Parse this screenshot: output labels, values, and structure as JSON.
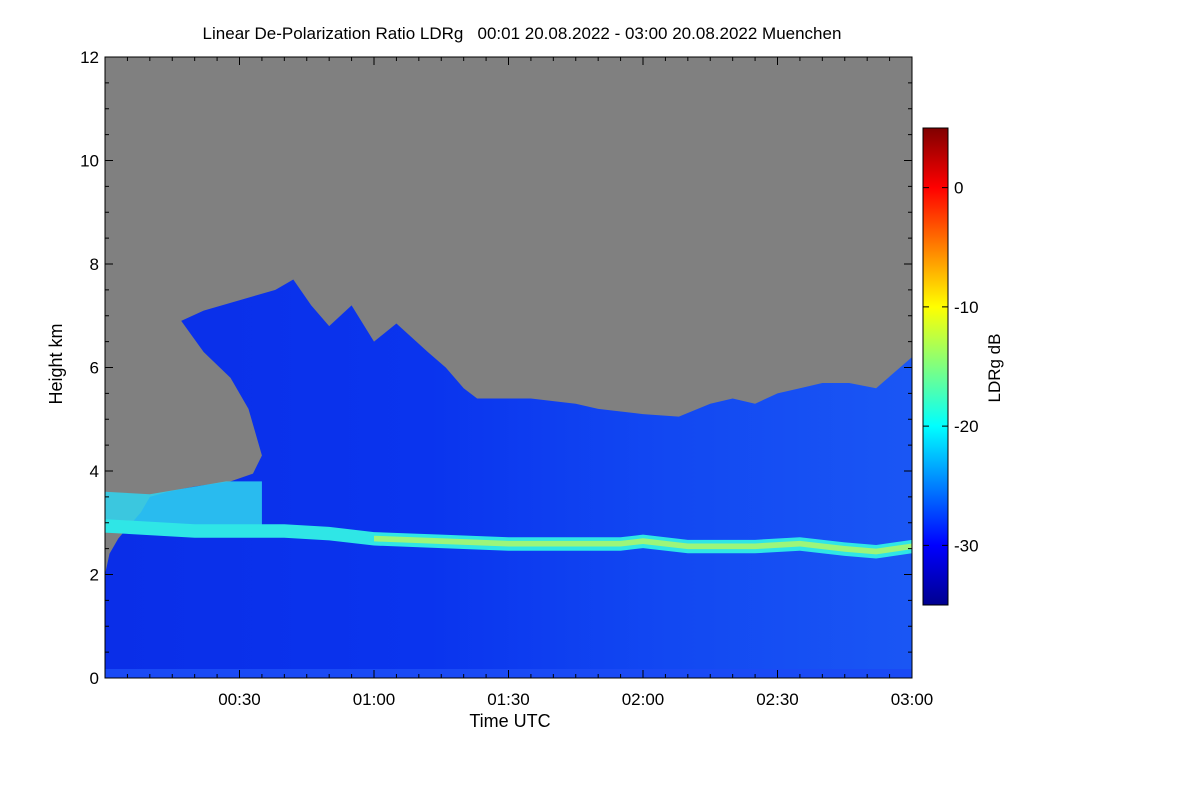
{
  "chart_data": {
    "type": "heatmap",
    "title": "Linear De-Polarization Ratio LDRg   00:01 20.08.2022 - 03:00 20.08.2022 Muenchen",
    "xlabel": "Time UTC",
    "ylabel": "Height km",
    "x_unit": "minutes after 00:00 UTC",
    "xlim": [
      0,
      180
    ],
    "ylim": [
      0,
      12
    ],
    "x_ticks": [
      {
        "value": 30,
        "label": "00:30"
      },
      {
        "value": 60,
        "label": "01:00"
      },
      {
        "value": 90,
        "label": "01:30"
      },
      {
        "value": 120,
        "label": "02:00"
      },
      {
        "value": 150,
        "label": "02:30"
      },
      {
        "value": 180,
        "label": "03:00"
      }
    ],
    "y_ticks": [
      {
        "value": 0,
        "label": "0"
      },
      {
        "value": 2,
        "label": "2"
      },
      {
        "value": 4,
        "label": "4"
      },
      {
        "value": 6,
        "label": "6"
      },
      {
        "value": 8,
        "label": "8"
      },
      {
        "value": 10,
        "label": "10"
      },
      {
        "value": 12,
        "label": "12"
      }
    ],
    "no_data_color": "#808080",
    "colorbar": {
      "label": "LDRg dB",
      "range": [
        -35,
        5
      ],
      "colormap": "jet",
      "ticks": [
        {
          "value": 0,
          "label": "0"
        },
        {
          "value": -10,
          "label": "-10"
        },
        {
          "value": -20,
          "label": "-20"
        },
        {
          "value": -30,
          "label": "-30"
        }
      ]
    },
    "regions": {
      "data_top_km": [
        {
          "t": 0,
          "h": 2.0
        },
        {
          "t": 1,
          "h": 2.4
        },
        {
          "t": 3,
          "h": 2.7
        },
        {
          "t": 5,
          "h": 2.9
        },
        {
          "t": 8,
          "h": 3.2
        },
        {
          "t": 10,
          "h": 3.5
        },
        {
          "t": 14,
          "h": 3.6
        },
        {
          "t": 20,
          "h": 3.7
        },
        {
          "t": 28,
          "h": 3.8
        },
        {
          "t": 33,
          "h": 3.95
        },
        {
          "t": 35,
          "h": 4.3
        },
        {
          "t": 32,
          "h": 5.2
        },
        {
          "t": 28,
          "h": 5.8
        },
        {
          "t": 22,
          "h": 6.3
        },
        {
          "t": 17,
          "h": 6.9
        },
        {
          "t": 22,
          "h": 7.1
        },
        {
          "t": 30,
          "h": 7.3
        },
        {
          "t": 38,
          "h": 7.5
        },
        {
          "t": 42,
          "h": 7.7
        },
        {
          "t": 46,
          "h": 7.2
        },
        {
          "t": 50,
          "h": 6.8
        },
        {
          "t": 55,
          "h": 7.2
        },
        {
          "t": 60,
          "h": 6.5
        },
        {
          "t": 65,
          "h": 6.85
        },
        {
          "t": 72,
          "h": 6.3
        },
        {
          "t": 76,
          "h": 6.0
        },
        {
          "t": 80,
          "h": 5.6
        },
        {
          "t": 83,
          "h": 5.4
        },
        {
          "t": 95,
          "h": 5.4
        },
        {
          "t": 105,
          "h": 5.3
        },
        {
          "t": 110,
          "h": 5.2
        },
        {
          "t": 120,
          "h": 5.1
        },
        {
          "t": 128,
          "h": 5.05
        },
        {
          "t": 135,
          "h": 5.3
        },
        {
          "t": 140,
          "h": 5.4
        },
        {
          "t": 145,
          "h": 5.3
        },
        {
          "t": 150,
          "h": 5.5
        },
        {
          "t": 155,
          "h": 5.6
        },
        {
          "t": 160,
          "h": 5.7
        },
        {
          "t": 166,
          "h": 5.7
        },
        {
          "t": 172,
          "h": 5.6
        },
        {
          "t": 176,
          "h": 5.9
        },
        {
          "t": 180,
          "h": 6.2
        }
      ],
      "melting_layer_km": [
        {
          "t": 0,
          "h": 2.95
        },
        {
          "t": 20,
          "h": 2.85
        },
        {
          "t": 40,
          "h": 2.85
        },
        {
          "t": 50,
          "h": 2.8
        },
        {
          "t": 60,
          "h": 2.7
        },
        {
          "t": 75,
          "h": 2.65
        },
        {
          "t": 90,
          "h": 2.6
        },
        {
          "t": 105,
          "h": 2.6
        },
        {
          "t": 115,
          "h": 2.6
        },
        {
          "t": 120,
          "h": 2.65
        },
        {
          "t": 130,
          "h": 2.55
        },
        {
          "t": 145,
          "h": 2.55
        },
        {
          "t": 155,
          "h": 2.6
        },
        {
          "t": 165,
          "h": 2.5
        },
        {
          "t": 172,
          "h": 2.45
        },
        {
          "t": 180,
          "h": 2.55
        }
      ],
      "ice_band_km": {
        "t_start": 0,
        "t_end": 35,
        "bottom": 2.9,
        "top": 3.8
      }
    }
  }
}
